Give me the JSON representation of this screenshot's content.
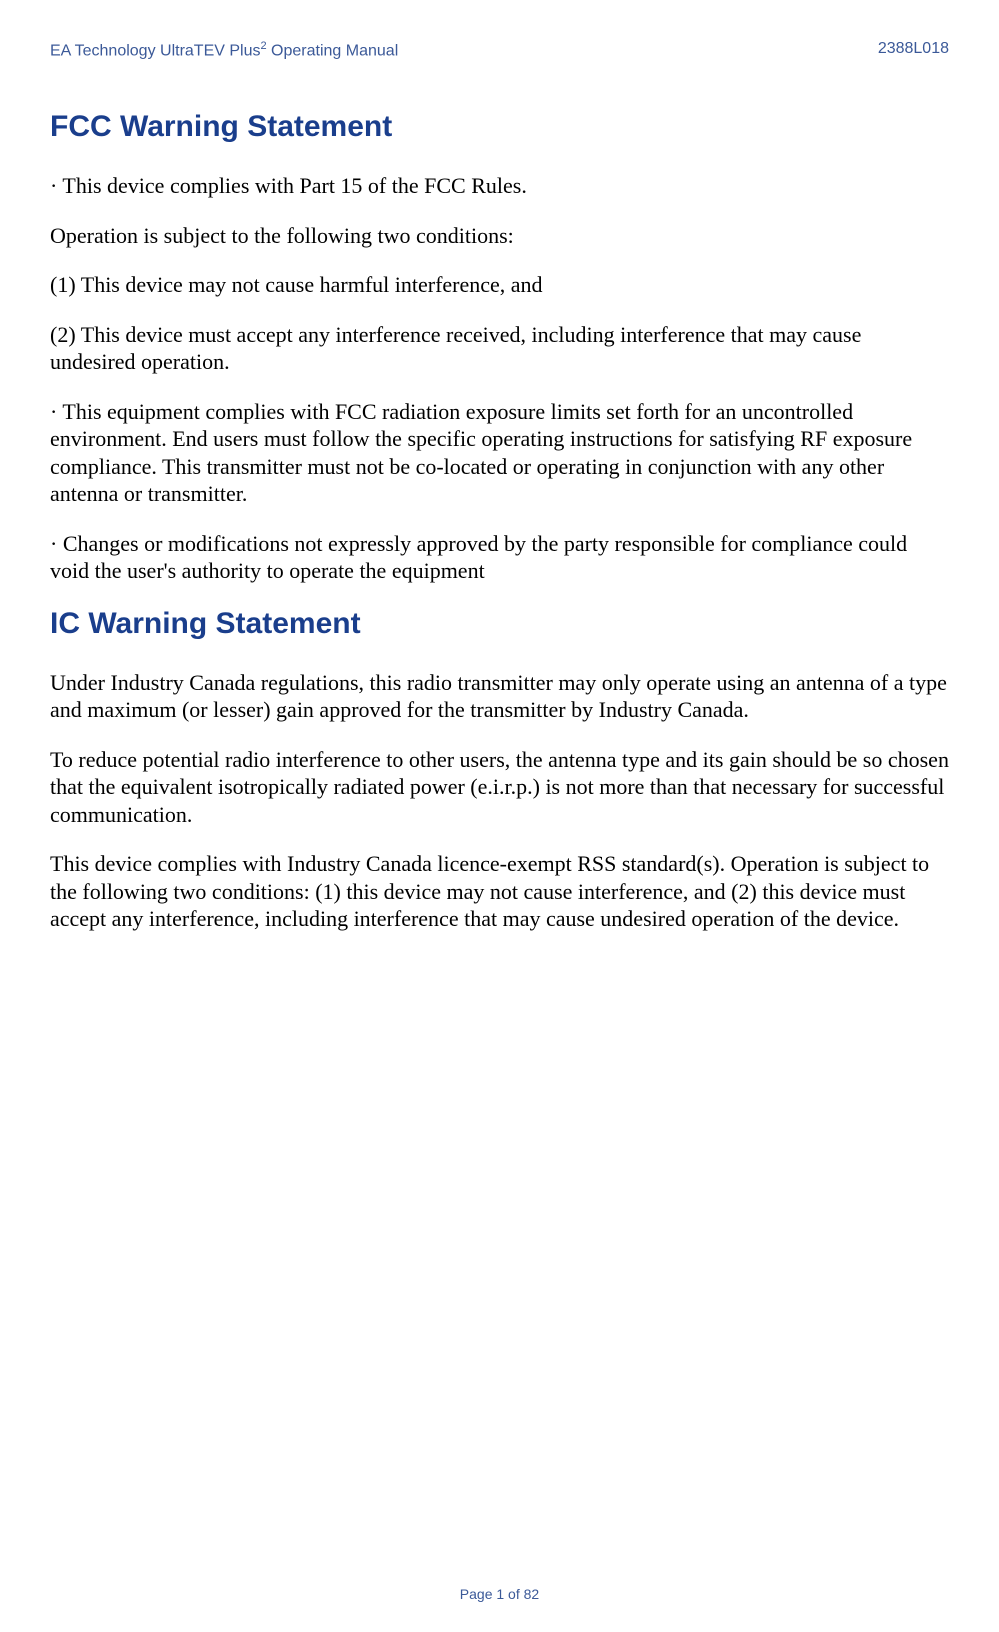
{
  "header": {
    "left_prefix": "EA Technology UltraTEV Plus",
    "left_super": "2",
    "left_suffix": " Operating Manual",
    "right": "2388L018"
  },
  "sections": {
    "fcc": {
      "title": "FCC Warning Statement",
      "p1": "· This device complies with Part 15 of the FCC Rules.",
      "p2": "Operation is subject to the following two conditions:",
      "p3": "(1) This device may not cause harmful interference, and",
      "p4": "(2) This device must accept any interference received, including interference that may cause undesired operation.",
      "p5": "· This equipment complies with FCC radiation exposure limits set forth for an uncontrolled environment. End users must follow the specific operating instructions for satisfying RF exposure compliance. This transmitter must not be co-located or operating in conjunction with any other antenna or transmitter.",
      "p6": "· Changes or modifications not expressly approved by the party responsible for compliance could void the user's authority to operate the equipment"
    },
    "ic": {
      "title": "IC Warning Statement",
      "p1": "Under Industry Canada regulations, this radio transmitter may only operate using an antenna of a type and maximum (or lesser) gain approved for the transmitter by Industry Canada.",
      "p2": "To reduce potential radio interference to other users, the antenna type and its gain should be so chosen that the equivalent isotropically radiated power (e.i.r.p.) is not more than that necessary for successful communication.",
      "p3": "This device complies with Industry Canada licence-exempt RSS standard(s). Operation is subject to the following two conditions: (1) this device may not cause interference, and (2) this device must accept any interference, including interference that may cause undesired operation of the device."
    }
  },
  "footer": {
    "text": "Page 1 of 82"
  },
  "colors": {
    "heading": "#1a3e8c",
    "header_text": "#3b5998",
    "body_text": "#000000",
    "background": "#ffffff"
  },
  "typography": {
    "heading_font": "Verdana",
    "heading_size_pt": 22,
    "body_font": "Times New Roman",
    "body_size_pt": 16,
    "header_footer_size_pt": 12
  }
}
